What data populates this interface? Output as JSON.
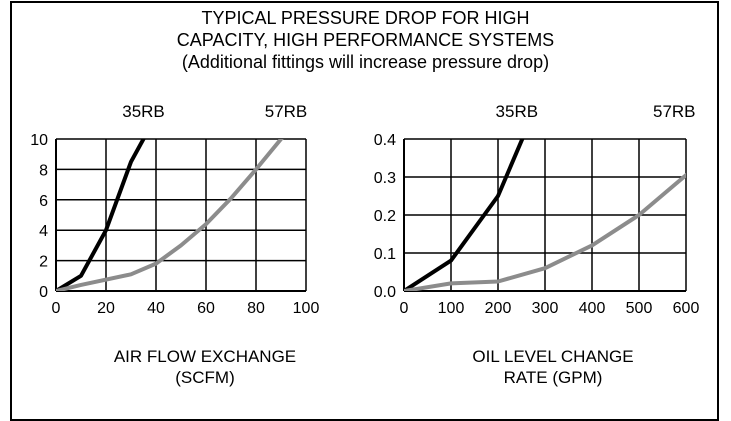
{
  "title_lines": [
    "TYPICAL PRESSURE DROP FOR HIGH",
    "CAPACITY, HIGH PERFORMANCE SYSTEMS",
    "(Additional fittings will increase pressure drop)"
  ],
  "colors": {
    "series_35rb": "#000000",
    "series_57rb": "#8c8c8c",
    "grid": "#000000"
  },
  "chart_data": [
    {
      "type": "line",
      "xlabel_lines": [
        "AIR FLOW EXCHANGE",
        "(SCFM)"
      ],
      "ylabel": "",
      "xlim": [
        0,
        100
      ],
      "ylim": [
        0,
        10
      ],
      "xticks": [
        0,
        20,
        40,
        60,
        80,
        100
      ],
      "yticks": [
        0,
        2,
        4,
        6,
        8,
        10
      ],
      "x_tick_labels": [
        "0",
        "20",
        "40",
        "60",
        "80",
        "100"
      ],
      "y_tick_labels": [
        "0",
        "2",
        "4",
        "6",
        "8",
        "10"
      ],
      "grid": true,
      "series": [
        {
          "name": "35RB",
          "label_x": 35,
          "color": "#000000",
          "points": [
            [
              0,
              0
            ],
            [
              10,
              1
            ],
            [
              20,
              4
            ],
            [
              30,
              8.5
            ],
            [
              36,
              10.3
            ]
          ]
        },
        {
          "name": "57RB",
          "label_x": 92,
          "color": "#8c8c8c",
          "points": [
            [
              0,
              0
            ],
            [
              10,
              0.4
            ],
            [
              30,
              1.1
            ],
            [
              40,
              1.8
            ],
            [
              50,
              3
            ],
            [
              60,
              4.4
            ],
            [
              70,
              6.1
            ],
            [
              80,
              8
            ],
            [
              91,
              10.2
            ]
          ]
        }
      ]
    },
    {
      "type": "line",
      "xlabel_lines": [
        "OIL LEVEL CHANGE",
        "RATE (GPM)"
      ],
      "ylabel": "",
      "xlim": [
        0,
        600
      ],
      "ylim": [
        0,
        0.4
      ],
      "xticks": [
        0,
        100,
        200,
        300,
        400,
        500,
        600
      ],
      "yticks": [
        0,
        0.1,
        0.2,
        0.3,
        0.4
      ],
      "x_tick_labels": [
        "0",
        "100",
        "200",
        "300",
        "400",
        "500",
        "600"
      ],
      "y_tick_labels": [
        "0.0",
        "0.1",
        "0.2",
        "0.3",
        "0.4"
      ],
      "grid": true,
      "series": [
        {
          "name": "35RB",
          "label_x": 240,
          "color": "#000000",
          "points": [
            [
              0,
              0
            ],
            [
              100,
              0.08
            ],
            [
              200,
              0.25
            ],
            [
              255,
              0.41
            ]
          ]
        },
        {
          "name": "57RB",
          "label_x": 575,
          "color": "#8c8c8c",
          "points": [
            [
              0,
              0
            ],
            [
              100,
              0.02
            ],
            [
              200,
              0.025
            ],
            [
              300,
              0.06
            ],
            [
              400,
              0.12
            ],
            [
              500,
              0.2
            ],
            [
              600,
              0.305
            ]
          ]
        }
      ]
    }
  ]
}
